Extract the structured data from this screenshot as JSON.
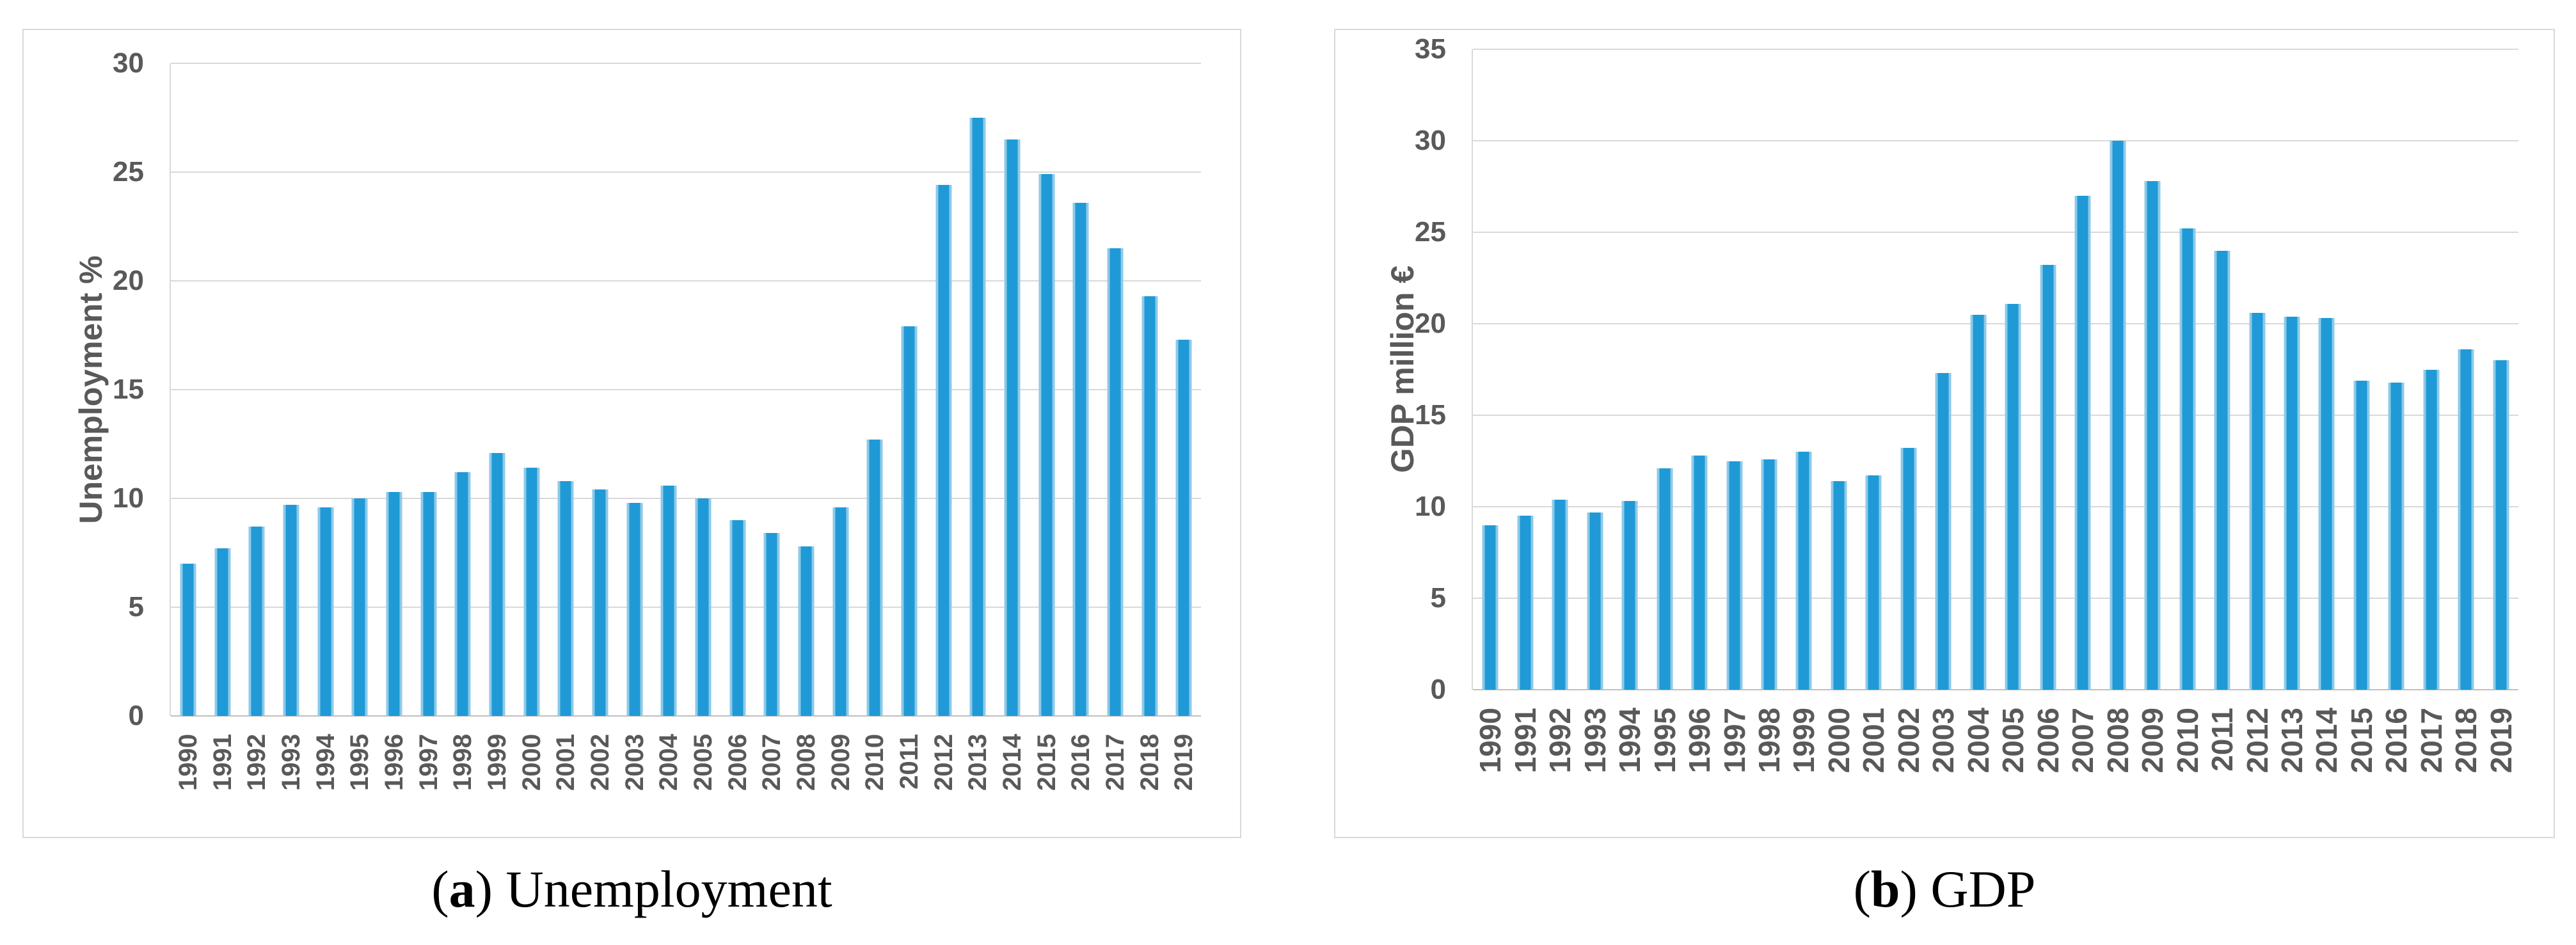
{
  "page": {
    "background": "#ffffff"
  },
  "colors": {
    "bar": "#1f9ad6",
    "bar_edge": "#8ecae8",
    "gridline": "#d9d9d9",
    "axis_line": "#bfbfbf",
    "tick_text": "#595959",
    "caption_text": "#000000",
    "panel_border": "#d9d9d9"
  },
  "captions": [
    {
      "open": "(",
      "letter": "a",
      "close": ")",
      "label": "Unemployment"
    },
    {
      "open": "(",
      "letter": "b",
      "close": ")",
      "label": "GDP"
    }
  ],
  "chart_data": [
    {
      "type": "bar",
      "title": "(a) Unemployment",
      "ylabel": "Unemployment %",
      "xlabel": "",
      "ylim": [
        0,
        30
      ],
      "ytick_step": 5,
      "grid": true,
      "legend": false,
      "categories": [
        "1990",
        "1991",
        "1992",
        "1993",
        "1994",
        "1995",
        "1996",
        "1997",
        "1998",
        "1999",
        "2000",
        "2001",
        "2002",
        "2003",
        "2004",
        "2005",
        "2006",
        "2007",
        "2008",
        "2009",
        "2010",
        "2011",
        "2012",
        "2013",
        "2014",
        "2015",
        "2016",
        "2017",
        "2018",
        "2019"
      ],
      "values": [
        7.0,
        7.7,
        8.7,
        9.7,
        9.6,
        10.0,
        10.3,
        10.3,
        11.2,
        12.1,
        11.4,
        10.8,
        10.4,
        9.8,
        10.6,
        10.0,
        9.0,
        8.4,
        7.8,
        9.6,
        12.7,
        17.9,
        24.4,
        27.5,
        26.5,
        24.9,
        23.6,
        21.5,
        19.3,
        17.3
      ]
    },
    {
      "type": "bar",
      "title": "(b) GDP",
      "ylabel": "GDP million €",
      "xlabel": "",
      "ylim": [
        0,
        35
      ],
      "ytick_step": 5,
      "grid": true,
      "legend": false,
      "categories": [
        "1990",
        "1991",
        "1992",
        "1993",
        "1994",
        "1995",
        "1996",
        "1997",
        "1998",
        "1999",
        "2000",
        "2001",
        "2002",
        "2003",
        "2004",
        "2005",
        "2006",
        "2007",
        "2008",
        "2009",
        "2010",
        "2011",
        "2012",
        "2013",
        "2014",
        "2015",
        "2016",
        "2017",
        "2018",
        "2019"
      ],
      "values": [
        9.0,
        9.5,
        10.4,
        9.7,
        10.3,
        12.1,
        12.8,
        12.5,
        12.6,
        13.0,
        11.4,
        11.7,
        13.2,
        17.3,
        20.5,
        21.1,
        23.2,
        27.0,
        30.0,
        27.8,
        25.2,
        24.0,
        20.6,
        20.4,
        20.3,
        16.9,
        16.8,
        17.5,
        18.6,
        18.0
      ]
    }
  ]
}
